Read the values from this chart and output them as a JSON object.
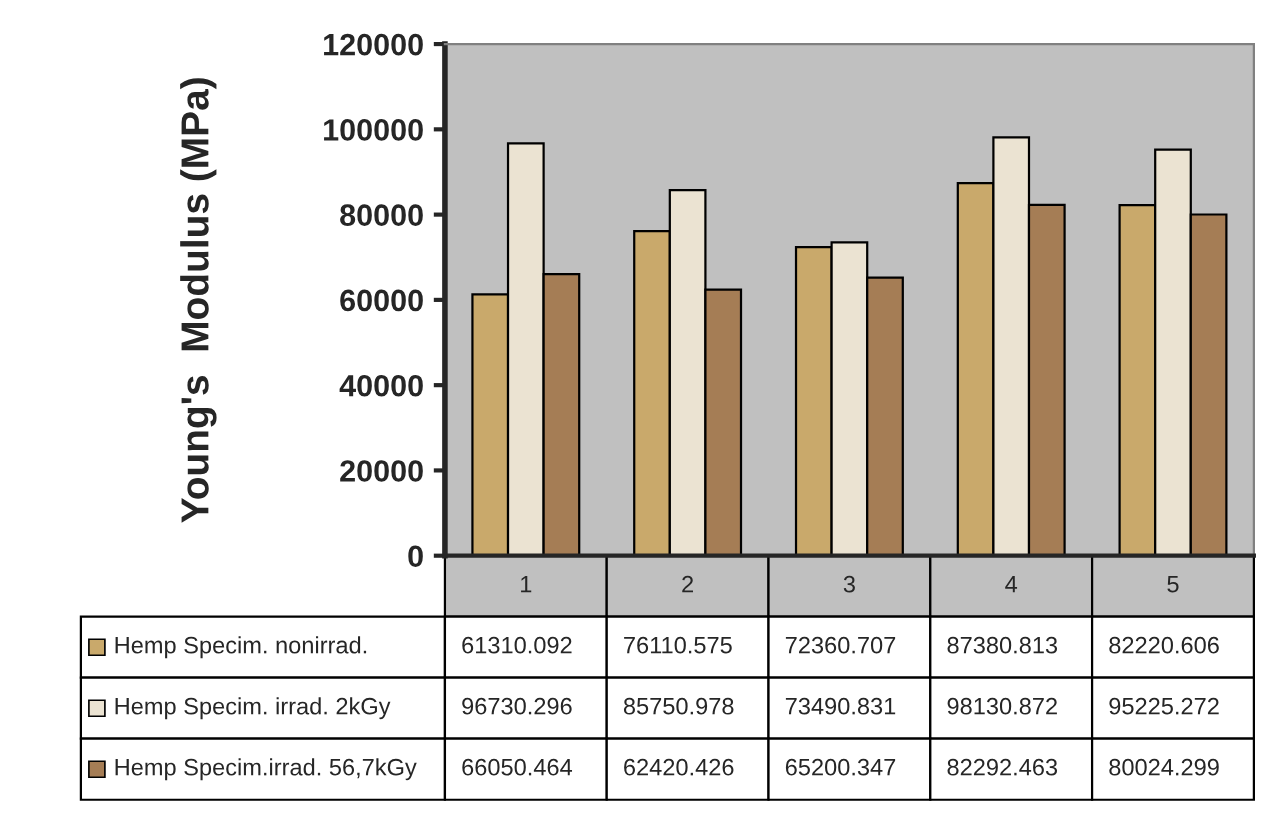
{
  "chart_data": {
    "type": "bar",
    "ylabel": "Young's  Modulus (MPa)",
    "categories": [
      "1",
      "2",
      "3",
      "4",
      "5"
    ],
    "series": [
      {
        "name": "Hemp Specim. nonirrad.",
        "color": "#c9a96b",
        "values": [
          61310.092,
          76110.575,
          72360.707,
          87380.813,
          82220.606
        ]
      },
      {
        "name": "Hemp Specim. irrad. 2kGy",
        "color": "#ebe3d2",
        "values": [
          96730.296,
          85750.978,
          73490.831,
          98130.872,
          95225.272
        ]
      },
      {
        "name": "Hemp Specim.irrad. 56,7kGy",
        "color": "#a57d55",
        "values": [
          66050.464,
          62420.426,
          65200.347,
          82292.463,
          80024.299
        ]
      }
    ],
    "ylim": [
      0,
      120000
    ],
    "yticks": [
      0,
      20000,
      40000,
      60000,
      80000,
      100000,
      120000
    ],
    "data_labels": true,
    "grid": false,
    "legend": "bottom"
  }
}
